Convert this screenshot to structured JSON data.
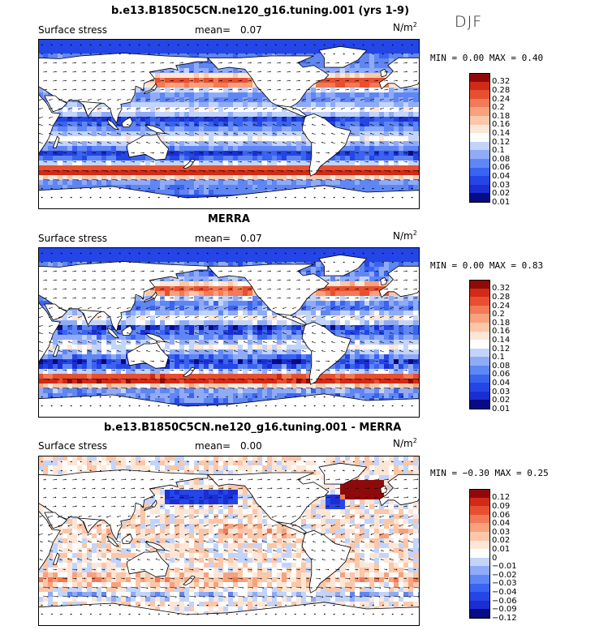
{
  "season": "DJF",
  "colors": {
    "abs": [
      "#0a0a84",
      "#1a2ed2",
      "#2546e6",
      "#3a63f0",
      "#5f86f5",
      "#8fabf8",
      "#c3d4fb",
      "#ffffff",
      "#fee6d6",
      "#fcc6a8",
      "#f8a17e",
      "#f27a56",
      "#e84f30",
      "#d12a17",
      "#8e0a0a"
    ],
    "diff": [
      "#0a0a84",
      "#1a2ed2",
      "#2546e6",
      "#3a63f0",
      "#5f86f5",
      "#8fabf8",
      "#c3d4fb",
      "#ffffff",
      "#fee6d6",
      "#fcc6a8",
      "#f8a17e",
      "#f27a56",
      "#e84f30",
      "#d12a17",
      "#8e0a0a"
    ]
  },
  "panels": [
    {
      "title": "b.e13.B1850C5CN.ne120_g16.tuning.001 (yrs 1-9)",
      "field": "Surface stress",
      "mean_label": "mean=",
      "mean": "0.07",
      "unit": "N/m",
      "unit_sup": "2",
      "minmax": "MIN =   0.00 MAX =   0.40",
      "levels": [
        "0.32",
        "0.28",
        "0.24",
        "0.2",
        "0.18",
        "0.16",
        "0.14",
        "0.12",
        "0.1",
        "0.08",
        "0.06",
        "0.04",
        "0.03",
        "0.02",
        "0.01"
      ],
      "palette": "abs"
    },
    {
      "title": "MERRA",
      "field": "Surface stress",
      "mean_label": "mean=",
      "mean": "0.07",
      "unit": "N/m",
      "unit_sup": "2",
      "minmax": "MIN =   0.00 MAX =   0.83",
      "levels": [
        "0.32",
        "0.28",
        "0.24",
        "0.2",
        "0.18",
        "0.16",
        "0.14",
        "0.12",
        "0.1",
        "0.08",
        "0.06",
        "0.04",
        "0.03",
        "0.02",
        "0.01"
      ],
      "palette": "abs"
    },
    {
      "title": "b.e13.B1850C5CN.ne120_g16.tuning.001 - MERRA",
      "field": "Surface stress",
      "mean_label": "mean=",
      "mean": "0.00",
      "unit": "N/m",
      "unit_sup": "2",
      "minmax": "MIN = −0.30 MAX =   0.25",
      "levels": [
        "0.12",
        "0.09",
        "0.06",
        "0.04",
        "0.03",
        "0.02",
        "0.01",
        "0",
        "−0.01",
        "−0.02",
        "−0.03",
        "−0.04",
        "−0.06",
        "−0.09",
        "−0.12"
      ],
      "palette": "diff"
    }
  ],
  "chart_data": [
    {
      "type": "heatmap",
      "title": "b.e13.B1850C5CN.ne120_g16.tuning.001 (yrs 1-9)",
      "subtitle": "Surface stress",
      "mean": 0.07,
      "units": "N/m2",
      "min": 0.0,
      "max": 0.4,
      "levels": [
        0.01,
        0.02,
        0.03,
        0.04,
        0.06,
        0.08,
        0.1,
        0.12,
        0.14,
        0.16,
        0.18,
        0.2,
        0.24,
        0.28,
        0.32
      ]
    },
    {
      "type": "heatmap",
      "title": "MERRA",
      "subtitle": "Surface stress",
      "mean": 0.07,
      "units": "N/m2",
      "min": 0.0,
      "max": 0.83,
      "levels": [
        0.01,
        0.02,
        0.03,
        0.04,
        0.06,
        0.08,
        0.1,
        0.12,
        0.14,
        0.16,
        0.18,
        0.2,
        0.24,
        0.28,
        0.32
      ]
    },
    {
      "type": "heatmap",
      "title": "b.e13.B1850C5CN.ne120_g16.tuning.001 - MERRA",
      "subtitle": "Surface stress",
      "mean": 0.0,
      "units": "N/m2",
      "min": -0.3,
      "max": 0.25,
      "levels": [
        -0.12,
        -0.09,
        -0.06,
        -0.04,
        -0.03,
        -0.02,
        -0.01,
        0,
        0.01,
        0.02,
        0.03,
        0.04,
        0.06,
        0.09,
        0.12
      ]
    }
  ]
}
